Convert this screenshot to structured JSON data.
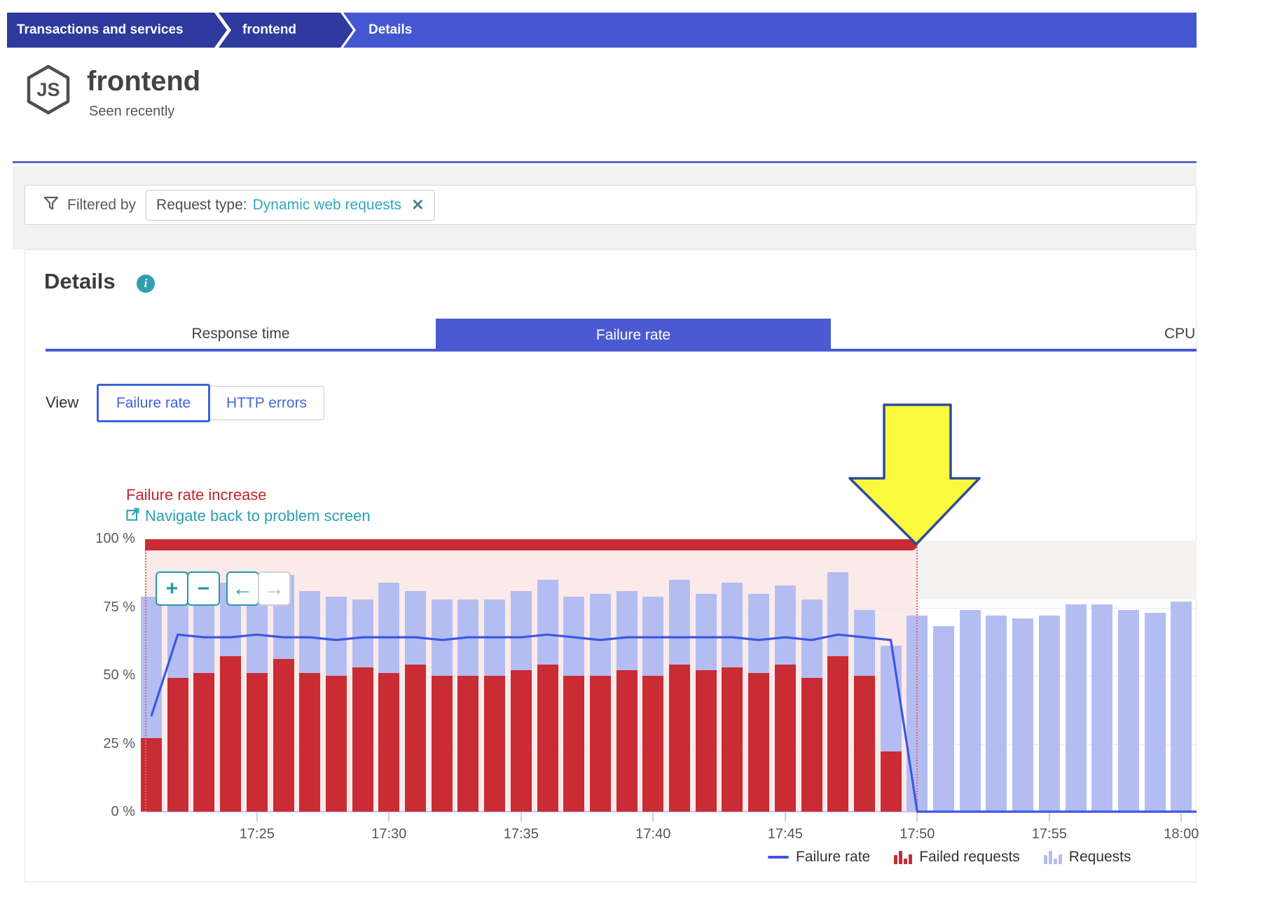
{
  "breadcrumb": {
    "items": [
      "Transactions and services",
      "frontend",
      "Details"
    ]
  },
  "header": {
    "title": "frontend",
    "subtitle": "Seen recently",
    "tech_icon": "nodejs-hexagon-icon",
    "tech_icon_label": "JS"
  },
  "filter": {
    "label": "Filtered by",
    "chip_prefix": "Request type:",
    "chip_value": "Dynamic web requests",
    "remove_glyph": "✕"
  },
  "details_section": {
    "title": "Details",
    "info_glyph": "i"
  },
  "tabs": [
    {
      "label": "Response time",
      "active": false
    },
    {
      "label": "Failure rate",
      "active": true
    },
    {
      "label": "CPU",
      "active": false,
      "partially_visible": true
    }
  ],
  "view_toggle": {
    "label": "View",
    "options": [
      {
        "label": "Failure rate",
        "selected": true
      },
      {
        "label": "HTTP errors",
        "selected": false
      }
    ]
  },
  "annotation": {
    "title": "Failure rate increase",
    "link_label": "Navigate back to problem screen"
  },
  "zoom_controls": {
    "zoom_in_label": "+",
    "zoom_out_label": "−",
    "pan_left_label": "←",
    "pan_right_label": "→",
    "pan_right_enabled": false
  },
  "chart_data": {
    "type": "bar+line",
    "title": "",
    "xlabel": "",
    "ylabel": "",
    "ylim": [
      0,
      100
    ],
    "gridlines": [
      25,
      50,
      75
    ],
    "legend_position": "bottom-right",
    "y_tick_labels_top_down": [
      "100 %",
      "75 %",
      "50 %",
      "25 %",
      "0 %"
    ],
    "x_tick_labels": [
      "17:25",
      "17:30",
      "17:35",
      "17:40",
      "17:45",
      "17:50",
      "17:55",
      "18:00"
    ],
    "x_tick_bar_indices": [
      4,
      9,
      14,
      19,
      24,
      29,
      34,
      39
    ],
    "categories_minutes": [
      "17:21",
      "17:22",
      "17:23",
      "17:24",
      "17:25",
      "17:26",
      "17:27",
      "17:28",
      "17:29",
      "17:30",
      "17:31",
      "17:32",
      "17:33",
      "17:34",
      "17:35",
      "17:36",
      "17:37",
      "17:38",
      "17:39",
      "17:40",
      "17:41",
      "17:42",
      "17:43",
      "17:44",
      "17:45",
      "17:46",
      "17:47",
      "17:48",
      "17:49",
      "17:50",
      "17:51",
      "17:52",
      "17:53",
      "17:54",
      "17:55",
      "17:56",
      "17:57",
      "17:58",
      "17:59",
      "18:00"
    ],
    "series": [
      {
        "name": "Requests",
        "type": "bar",
        "color": "#b4bdf2",
        "unit": "%of_axis",
        "values": [
          79,
          76,
          81,
          84,
          82,
          87,
          81,
          79,
          78,
          84,
          81,
          78,
          78,
          78,
          81,
          85,
          79,
          80,
          81,
          79,
          85,
          80,
          84,
          80,
          83,
          78,
          88,
          74,
          61,
          72,
          68,
          74,
          72,
          71,
          72,
          76,
          76,
          74,
          73,
          77
        ]
      },
      {
        "name": "Failed requests",
        "type": "bar",
        "color": "#c92c35",
        "unit": "%of_axis",
        "values": [
          27,
          49,
          51,
          57,
          51,
          56,
          51,
          50,
          53,
          51,
          54,
          50,
          50,
          50,
          52,
          54,
          50,
          50,
          52,
          50,
          54,
          52,
          53,
          51,
          54,
          49,
          57,
          50,
          22,
          0,
          0,
          0,
          0,
          0,
          0,
          0,
          0,
          0,
          0,
          0
        ]
      },
      {
        "name": "Failure rate",
        "type": "line",
        "color": "#3d56e3",
        "unit": "%",
        "values": [
          35,
          65,
          64,
          64,
          65,
          64,
          64,
          63,
          64,
          64,
          64,
          63,
          64,
          64,
          64,
          65,
          64,
          63,
          64,
          64,
          64,
          64,
          64,
          63,
          64,
          63,
          65,
          64,
          63,
          0,
          0,
          0,
          0,
          0,
          0,
          0,
          0,
          0,
          0,
          0
        ]
      }
    ],
    "problem_overlay": {
      "start": "17:21",
      "end": "17:50",
      "top_band_value": "100 %",
      "top_band_color": "#c92c35",
      "region_color": "#fbeaea",
      "marker": "yellow-down-arrow at 17:50"
    }
  },
  "legend": {
    "items": [
      {
        "label": "Failure rate",
        "swatch": "line",
        "color": "#3d56e3"
      },
      {
        "label": "Failed requests",
        "swatch": "mini-bars",
        "color": "#c92c35"
      },
      {
        "label": "Requests",
        "swatch": "mini-bars",
        "color": "#b4bdf2"
      }
    ]
  },
  "colors": {
    "breadcrumb_dark": "#2e3a9d",
    "breadcrumb_light": "#4557d0",
    "tab_active": "#4b5ad2",
    "teal_link": "#2b9fb1",
    "teal_control": "#2a97a7",
    "red": "#c92c35",
    "pink_region": "#fbeaea",
    "bar_blue": "#b4bdf2",
    "line_blue": "#3d56e3",
    "arrow_yellow": "#f9f93e",
    "arrow_border": "#2d4c99"
  }
}
